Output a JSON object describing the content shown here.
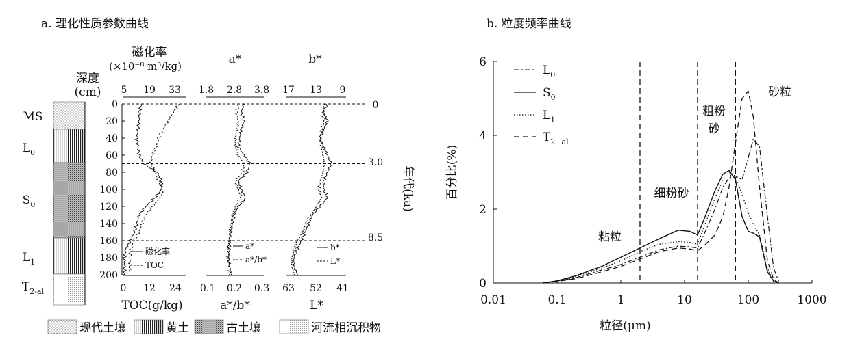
{
  "panel_a": {
    "title": "a. 理化性质参数曲线",
    "depth_label_1": "深度",
    "depth_label_2": "(cm)",
    "depth_ticks": [
      "0",
      "20",
      "40",
      "60",
      "80",
      "100",
      "120",
      "140",
      "160",
      "180",
      "200"
    ],
    "age_label": "年代(ka)",
    "age_ticks": [
      "0",
      "3.0",
      "8.5"
    ],
    "strata": [
      {
        "label": "MS",
        "sub": ""
      },
      {
        "label": "L",
        "sub": "0"
      },
      {
        "label": "S",
        "sub": "0"
      },
      {
        "label": "L",
        "sub": "1"
      },
      {
        "label": "T",
        "sub": "2-al"
      }
    ],
    "track1": {
      "top_title_1": "磁化率",
      "top_title_2": "(×10⁻⁸ m³/kg)",
      "top_ticks": [
        "5",
        "19",
        "33"
      ],
      "bottom_title": "TOC(g/kg)",
      "bottom_ticks": [
        "0",
        "12",
        "24"
      ],
      "legend": [
        "磁化率",
        "TOC"
      ]
    },
    "track2": {
      "top_title": "a*",
      "top_ticks": [
        "1.8",
        "2.8",
        "3.8"
      ],
      "bottom_title": "a*/b*",
      "bottom_ticks": [
        "0.1",
        "0.2",
        "0.3"
      ],
      "legend": [
        "a*",
        "a*/b*"
      ]
    },
    "track3": {
      "top_title": "b*",
      "top_ticks": [
        "17",
        "13",
        "9"
      ],
      "bottom_title": "L*",
      "bottom_ticks": [
        "63",
        "52",
        "41"
      ],
      "legend": [
        "b*",
        "L*"
      ]
    },
    "bottom_legend": [
      "现代土壤",
      "黄土",
      "古土壤",
      "河流相沉积物"
    ]
  },
  "chart_data": [
    {
      "type": "line",
      "title": "a. 理化性质参数曲线",
      "y_axis": {
        "label": "深度(cm)",
        "range": [
          0,
          200
        ],
        "ticks": [
          0,
          20,
          40,
          60,
          80,
          100,
          120,
          140,
          160,
          180,
          200
        ],
        "inverted": true
      },
      "age_markers": [
        {
          "depth": 0,
          "age": "0"
        },
        {
          "depth": 70,
          "age": "3.0"
        },
        {
          "depth": 160,
          "age": "8.5"
        }
      ],
      "strata": [
        {
          "name": "MS",
          "top": 0,
          "bottom": 30,
          "pattern": "现代土壤"
        },
        {
          "name": "L0",
          "top": 30,
          "bottom": 70,
          "pattern": "黄土"
        },
        {
          "name": "S0",
          "top": 70,
          "bottom": 160,
          "pattern": "古土壤"
        },
        {
          "name": "L1",
          "top": 160,
          "bottom": 200,
          "pattern": "黄土"
        },
        {
          "name": "T2-al",
          "top": 200,
          "bottom": 250,
          "pattern": "河流相沉积物"
        }
      ],
      "depths": [
        0,
        10,
        20,
        30,
        40,
        50,
        60,
        70,
        80,
        90,
        100,
        110,
        120,
        130,
        140,
        150,
        160,
        170,
        180,
        190,
        200
      ],
      "series": [
        {
          "name": "磁化率",
          "axis": "top",
          "range": [
            5,
            33
          ],
          "style": "solid",
          "values": [
            13,
            12,
            12,
            11.5,
            11,
            11.5,
            12,
            14,
            20,
            22,
            22,
            19,
            15,
            12,
            11,
            10,
            8,
            6,
            5.5,
            5.5,
            5.5
          ]
        },
        {
          "name": "TOC",
          "axis": "bottom",
          "range": [
            0,
            24
          ],
          "style": "dashed",
          "values": [
            21,
            19,
            17,
            15,
            13.5,
            12.5,
            11,
            10.5,
            12,
            13.5,
            15,
            14,
            11,
            8.5,
            7,
            6,
            4,
            3,
            2.5,
            2.5,
            2.5
          ]
        },
        {
          "name": "a*",
          "axis": "top",
          "range": [
            1.8,
            3.8
          ],
          "style": "solid",
          "values": [
            3.1,
            3.0,
            3.1,
            3.0,
            2.95,
            2.9,
            3.1,
            3.3,
            3.2,
            2.9,
            3.0,
            3.15,
            2.9,
            2.75,
            2.7,
            2.65,
            2.6,
            2.6,
            2.55,
            2.6,
            2.65
          ]
        },
        {
          "name": "a*/b*",
          "axis": "bottom",
          "range": [
            0.1,
            0.3
          ],
          "style": "dashed",
          "values": [
            0.21,
            0.205,
            0.21,
            0.205,
            0.2,
            0.2,
            0.21,
            0.23,
            0.225,
            0.2,
            0.21,
            0.22,
            0.2,
            0.19,
            0.185,
            0.18,
            0.18,
            0.175,
            0.175,
            0.18,
            0.18
          ]
        },
        {
          "name": "b*",
          "axis": "top",
          "range": [
            17,
            9
          ],
          "style": "solid",
          "values": [
            11.5,
            12,
            11.5,
            12,
            12.5,
            12,
            11.5,
            11,
            11.5,
            12,
            12,
            11.5,
            12.5,
            13.5,
            14,
            14.5,
            15,
            15.5,
            16,
            16,
            15.5
          ]
        },
        {
          "name": "L*",
          "axis": "bottom",
          "range": [
            63,
            41
          ],
          "style": "dashed",
          "values": [
            49,
            49.5,
            49,
            50,
            50.5,
            50,
            49.5,
            49,
            49.5,
            50.5,
            51,
            50,
            52,
            54,
            56,
            57,
            59,
            60,
            61,
            61,
            60
          ]
        }
      ]
    },
    {
      "type": "line",
      "title": "b. 粒度频率曲线",
      "xlabel": "粒径(μm)",
      "ylabel": "百分比(%)",
      "x_scale": "log",
      "xlim": [
        0.01,
        1000
      ],
      "ylim": [
        0,
        6
      ],
      "x_ticks": [
        "0.01",
        "0.1",
        "1",
        "10",
        "100",
        "1000"
      ],
      "y_ticks": [
        "0",
        "2",
        "4",
        "6"
      ],
      "legend_position": "top-left",
      "vlines": [
        2,
        16,
        63
      ],
      "region_labels": [
        "粘粒",
        "细粉砂",
        "粗粉\n砂",
        "砂粒"
      ],
      "x": [
        0.06,
        0.1,
        0.2,
        0.5,
        1,
        2,
        4,
        8,
        12,
        16,
        20,
        30,
        40,
        50,
        63,
        80,
        100,
        120,
        150,
        200,
        250,
        300
      ],
      "series": [
        {
          "name": "L0",
          "style": "dashdot",
          "values": [
            0,
            0.05,
            0.15,
            0.35,
            0.5,
            0.7,
            0.9,
            1.0,
            0.98,
            0.95,
            1.3,
            2.0,
            2.6,
            2.85,
            2.9,
            2.8,
            3.4,
            3.9,
            3.7,
            1.8,
            0.4,
            0.05
          ]
        },
        {
          "name": "S0",
          "style": "solid",
          "values": [
            0,
            0.06,
            0.2,
            0.45,
            0.7,
            0.95,
            1.2,
            1.43,
            1.4,
            1.3,
            1.7,
            2.5,
            2.95,
            3.05,
            2.8,
            1.8,
            1.4,
            1.35,
            1.25,
            0.3,
            0.05,
            0
          ]
        },
        {
          "name": "L1",
          "style": "dotted",
          "values": [
            0,
            0.05,
            0.18,
            0.4,
            0.6,
            0.85,
            1.05,
            1.12,
            1.1,
            1.05,
            1.5,
            2.3,
            2.8,
            3.0,
            2.9,
            2.4,
            1.9,
            1.6,
            1.3,
            0.4,
            0.05,
            0
          ]
        },
        {
          "name": "T2-al",
          "style": "dashed",
          "values": [
            0,
            0.04,
            0.12,
            0.3,
            0.45,
            0.65,
            0.85,
            0.95,
            0.92,
            0.88,
            1.0,
            1.3,
            1.8,
            2.6,
            3.8,
            5.0,
            5.2,
            4.5,
            2.6,
            0.6,
            0.1,
            0
          ]
        }
      ]
    }
  ],
  "panel_b": {
    "title": "b. 粒度频率曲线",
    "legend": [
      {
        "base": "L",
        "sub": "0"
      },
      {
        "base": "S",
        "sub": "0"
      },
      {
        "base": "L",
        "sub": "1"
      },
      {
        "base": "T",
        "sub": "2−al"
      }
    ]
  }
}
